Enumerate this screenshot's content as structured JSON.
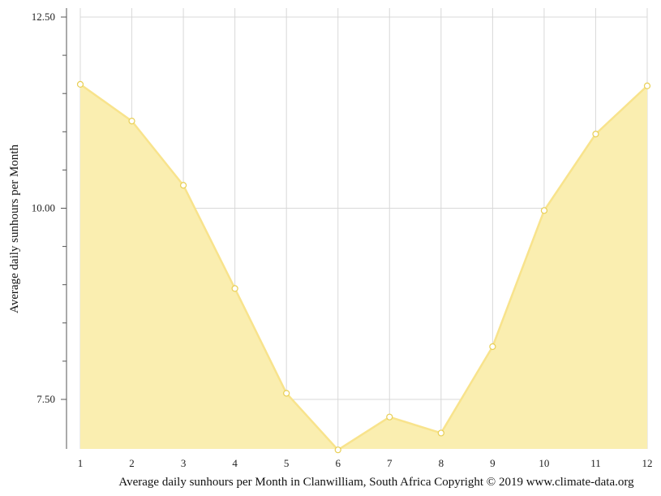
{
  "chart_data": {
    "type": "area",
    "x": [
      1,
      2,
      3,
      4,
      5,
      6,
      7,
      8,
      9,
      10,
      11,
      12
    ],
    "series": [
      {
        "values": [
          11.62,
          11.14,
          10.3,
          8.95,
          7.58,
          6.84,
          7.27,
          7.06,
          8.19,
          9.97,
          10.97,
          11.6
        ]
      }
    ],
    "ylabel": "Average daily sunhours per Month",
    "caption": "Average daily sunhours per Month in Clanwilliam, South Africa Copyright © 2019 www.climate-data.org",
    "xlim": [
      1,
      12
    ],
    "ylim": [
      6.84,
      12.5
    ],
    "y_major_ticks": [
      7.5,
      10.0,
      12.5
    ],
    "y_major_tick_labels": [
      "7.50",
      "10.00",
      "12.50"
    ],
    "y_minor_ticks": [
      8.0,
      8.5,
      9.0,
      9.5,
      10.5,
      11.0,
      11.5,
      12.0
    ],
    "x_tick_labels": [
      "1",
      "2",
      "3",
      "4",
      "5",
      "6",
      "7",
      "8",
      "9",
      "10",
      "11",
      "12"
    ],
    "grid": true,
    "colors": {
      "fill": "#faeeb0",
      "line": "#f8e38c",
      "marker_edge": "#e8cf55",
      "grid": "#d8d8d8",
      "axis": "#555555"
    }
  }
}
